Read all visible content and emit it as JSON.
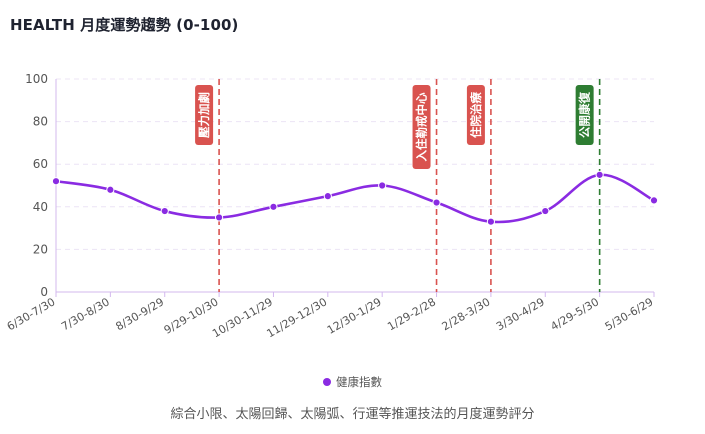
{
  "header": {
    "title": "HEALTH 月度運勢趨勢 (0-100)"
  },
  "legend": {
    "label": "健康指數",
    "color": "#8a2be2"
  },
  "caption": "綜合小限、太陽回歸、太陽弧、行運等推運技法的月度運勢評分",
  "chart_data": {
    "type": "line",
    "title": "HEALTH 月度運勢趨勢 (0-100)",
    "xlabel": "",
    "ylabel": "",
    "ylim": [
      0,
      100
    ],
    "yticks": [
      0,
      20,
      40,
      60,
      80,
      100
    ],
    "grid": true,
    "legend_position": "bottom",
    "categories": [
      "6/30-7/30",
      "7/30-8/30",
      "8/30-9/29",
      "9/29-10/30",
      "10/30-11/29",
      "11/29-12/30",
      "12/30-1/29",
      "1/29-2/28",
      "2/28-3/30",
      "3/30-4/29",
      "4/29-5/30",
      "5/30-6/29"
    ],
    "series": [
      {
        "name": "健康指數",
        "color": "#8a2be2",
        "values": [
          52,
          48,
          38,
          35,
          40,
          45,
          50,
          42,
          33,
          38,
          55,
          43
        ]
      }
    ],
    "annotations": [
      {
        "category_index": 3,
        "label": "壓力加劇",
        "color": "#d9534f",
        "type": "vertical-dashed"
      },
      {
        "category_index": 7,
        "label": "入住勒戒中心",
        "color": "#d9534f",
        "type": "vertical-dashed"
      },
      {
        "category_index": 8,
        "label": "住院治療",
        "color": "#d9534f",
        "type": "vertical-dashed"
      },
      {
        "category_index": 10,
        "label": "公開康復",
        "color": "#2e7d32",
        "type": "vertical-dashed"
      }
    ]
  }
}
